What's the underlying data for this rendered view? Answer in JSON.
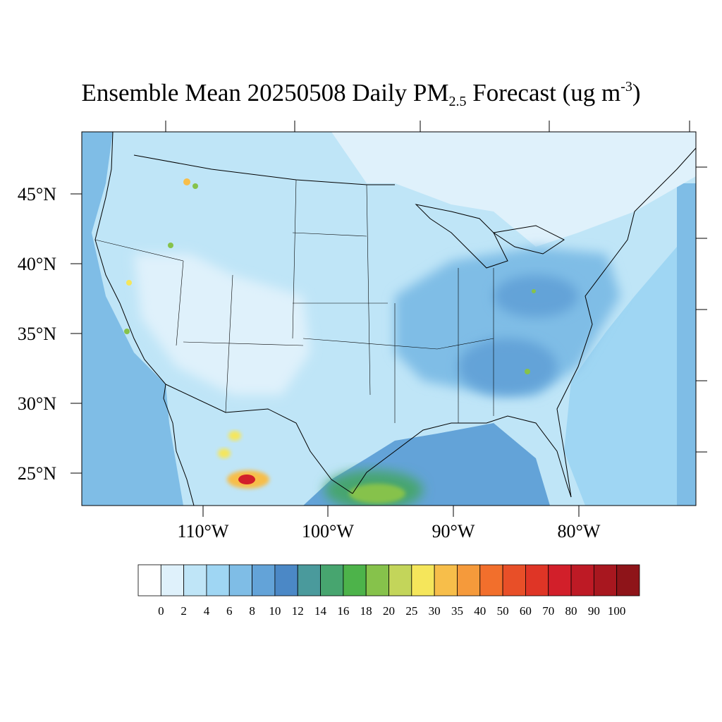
{
  "title": {
    "prefix": "Ensemble Mean 20250508 Daily PM",
    "subscript": "2.5",
    "mid": " Forecast (ug m",
    "superscript": "-3",
    "suffix": ")"
  },
  "axes": {
    "lat_labels": [
      "45°N",
      "40°N",
      "35°N",
      "30°N",
      "25°N"
    ],
    "lon_labels": [
      "110°W",
      "100°W",
      "90°W",
      "80°W"
    ]
  },
  "colorbar": {
    "labels": [
      "0",
      "2",
      "4",
      "6",
      "8",
      "10",
      "12",
      "14",
      "16",
      "18",
      "20",
      "25",
      "30",
      "35",
      "40",
      "50",
      "60",
      "70",
      "80",
      "90",
      "100"
    ],
    "colors": [
      "#ffffff",
      "#dff1fb",
      "#bfe5f7",
      "#9fd6f3",
      "#7fbde6",
      "#63a3d8",
      "#4b88c6",
      "#4a9a9c",
      "#47a56f",
      "#4db34a",
      "#86c24b",
      "#c3d55a",
      "#f5e65b",
      "#f7be4a",
      "#f59a3b",
      "#f26f2c",
      "#e84f28",
      "#df3526",
      "#d21f2a",
      "#be1a25",
      "#a8171f",
      "#8e1419"
    ]
  },
  "map_colors": {
    "ocean_west": "#7fbde6",
    "ocean_gulf": "#63a3d8",
    "background": "#bfe5f7",
    "land_light": "#dff1fb",
    "land_mid": "#9fd6f3",
    "east_haze": "#7fbde6",
    "hotspot_yellow": "#f5e65b",
    "hotspot_orange": "#f7be4a",
    "hotspot_red": "#d21f2a",
    "hotspot_green": "#86c24b"
  }
}
